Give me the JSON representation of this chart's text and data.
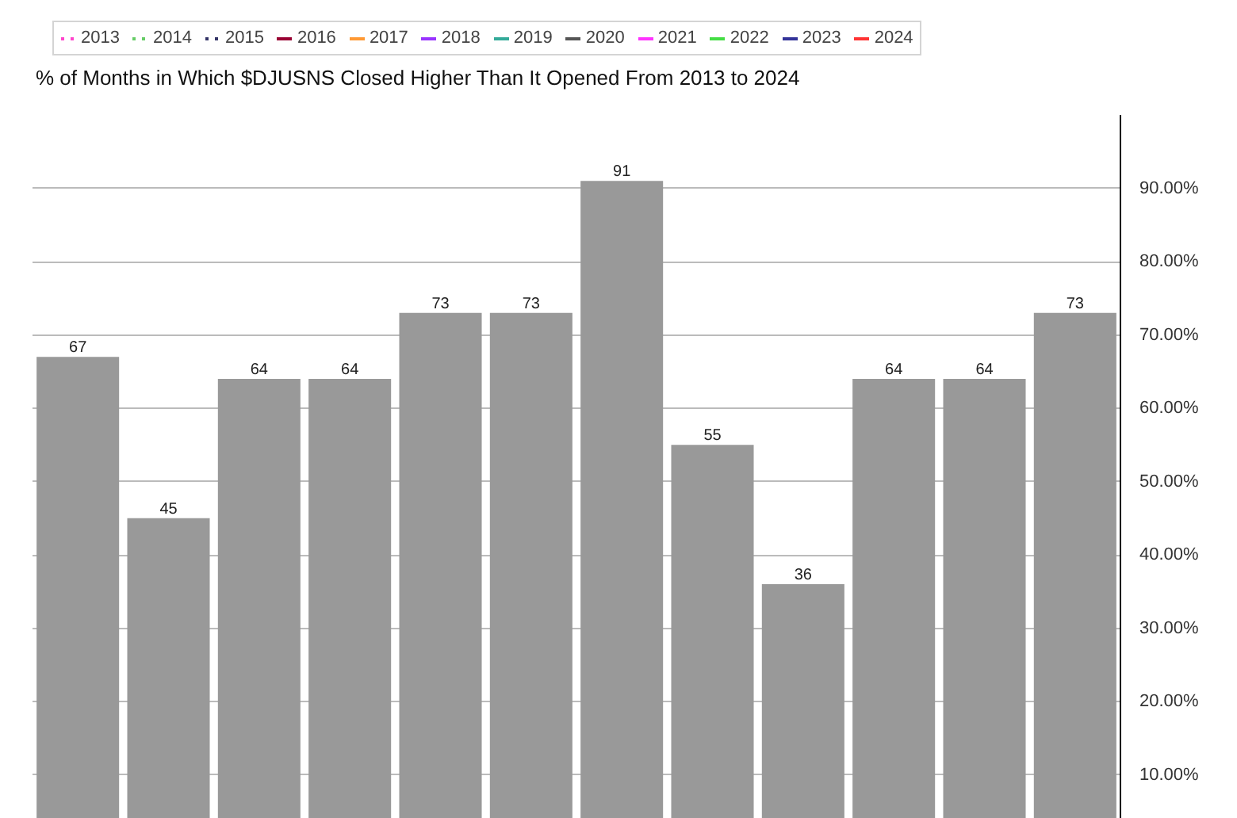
{
  "chart_data": {
    "type": "bar",
    "title": "% of Months in Which $DJUSNS Closed Higher Than It Opened From 2013 to 2024",
    "categories": [
      null,
      null,
      null,
      null,
      null,
      null,
      null,
      null,
      null,
      null,
      null,
      null
    ],
    "series": [
      {
        "color": "#999999",
        "values": [
          67,
          45,
          64,
          64,
          73,
          73,
          91,
          55,
          36,
          64,
          64,
          73
        ]
      },
      {
        "name": "2013",
        "type": "line",
        "line_style": "dotted",
        "color": "#ff44cc",
        "values": [
          null,
          null,
          null,
          null,
          null,
          null,
          null,
          null,
          null,
          null,
          null,
          null
        ]
      },
      {
        "name": "2014",
        "type": "line",
        "line_style": "dotted",
        "color": "#66cc66",
        "values": [
          null,
          null,
          null,
          null,
          null,
          null,
          null,
          null,
          null,
          null,
          null,
          null
        ]
      },
      {
        "name": "2015",
        "type": "line",
        "line_style": "dotted",
        "color": "#333366",
        "values": [
          null,
          null,
          null,
          null,
          null,
          null,
          null,
          null,
          null,
          null,
          null,
          null
        ]
      },
      {
        "name": "2016",
        "type": "line",
        "line_style": "solid",
        "color": "#990033",
        "values": [
          null,
          null,
          null,
          null,
          null,
          null,
          null,
          null,
          null,
          null,
          null,
          null
        ]
      },
      {
        "name": "2017",
        "type": "line",
        "line_style": "solid",
        "color": "#ff9933",
        "values": [
          null,
          null,
          null,
          null,
          null,
          null,
          null,
          null,
          null,
          null,
          null,
          null
        ]
      },
      {
        "name": "2018",
        "type": "line",
        "line_style": "solid",
        "color": "#9933ff",
        "values": [
          null,
          null,
          null,
          null,
          null,
          null,
          null,
          null,
          null,
          null,
          null,
          null
        ]
      },
      {
        "name": "2019",
        "type": "line",
        "line_style": "solid",
        "color": "#33aa99",
        "values": [
          null,
          null,
          null,
          null,
          null,
          null,
          null,
          null,
          null,
          null,
          null,
          null
        ]
      },
      {
        "name": "2020",
        "type": "line",
        "line_style": "solid",
        "color": "#555555",
        "values": [
          null,
          null,
          null,
          null,
          null,
          null,
          null,
          null,
          null,
          null,
          null,
          null
        ]
      },
      {
        "name": "2021",
        "type": "line",
        "line_style": "solid",
        "color": "#ff33ff",
        "values": [
          null,
          null,
          null,
          null,
          null,
          null,
          null,
          null,
          null,
          null,
          null,
          null
        ]
      },
      {
        "name": "2022",
        "type": "line",
        "line_style": "solid",
        "color": "#44dd44",
        "values": [
          null,
          null,
          null,
          null,
          null,
          null,
          null,
          null,
          null,
          null,
          null,
          null
        ]
      },
      {
        "name": "2023",
        "type": "line",
        "line_style": "solid",
        "color": "#333399",
        "values": [
          null,
          null,
          null,
          null,
          null,
          null,
          null,
          null,
          null,
          null,
          null,
          null
        ]
      },
      {
        "name": "2024",
        "type": "line",
        "line_style": "solid",
        "color": "#ff3333",
        "values": [
          null,
          null,
          null,
          null,
          null,
          null,
          null,
          null,
          null,
          null,
          null,
          null
        ]
      }
    ],
    "ylim": [
      4,
      100
    ],
    "yticks": [
      {
        "value": 10,
        "label": "10.00%"
      },
      {
        "value": 20,
        "label": "20.00%"
      },
      {
        "value": 30,
        "label": "30.00%"
      },
      {
        "value": 40,
        "label": "40.00%"
      },
      {
        "value": 50,
        "label": "50.00%"
      },
      {
        "value": 60,
        "label": "60.00%"
      },
      {
        "value": 70,
        "label": "70.00%"
      },
      {
        "value": 80,
        "label": "80.00%"
      },
      {
        "value": 90,
        "label": "90.00%"
      }
    ],
    "grid": "y",
    "legend": "top left",
    "data_labels": true,
    "tick_labels": "y"
  }
}
